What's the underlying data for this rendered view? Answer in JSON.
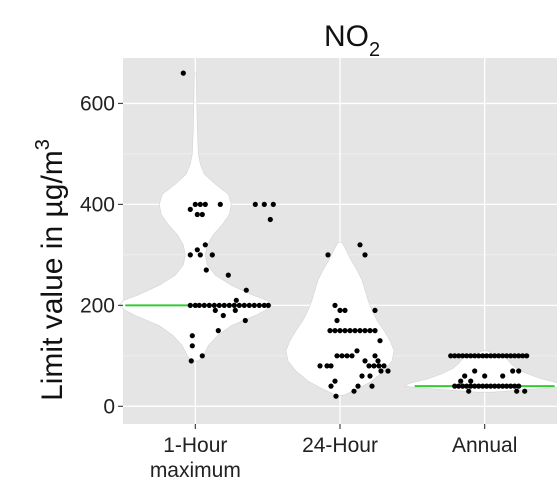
{
  "chart_data": {
    "type": "violin",
    "title": {
      "main": "NO",
      "subscript": "2"
    },
    "ylabel": {
      "main": "Limit value in µg/m",
      "superscript": "3"
    },
    "xlabel": "",
    "categories": [
      "1-Hour\nmaximum",
      "24-Hour",
      "Annual"
    ],
    "category_lines": [
      [
        "1-Hour",
        "maximum"
      ],
      [
        "24-Hour"
      ],
      [
        "Annual"
      ]
    ],
    "yticks": [
      0,
      200,
      400,
      600
    ],
    "ylim": [
      -35,
      690
    ],
    "grid": true,
    "background": "#e5e5e5",
    "violin_fill": "#ffffff",
    "point_color": "#000000",
    "median_color": "#33cc33",
    "medians": [
      200,
      null,
      40
    ],
    "violins": [
      {
        "category": "1-Hour\nmaximum",
        "profile": [
          [
            90,
            3
          ],
          [
            100,
            8
          ],
          [
            120,
            13
          ],
          [
            140,
            22
          ],
          [
            160,
            36
          ],
          [
            180,
            60
          ],
          [
            190,
            70
          ],
          [
            200,
            76
          ],
          [
            210,
            72
          ],
          [
            220,
            58
          ],
          [
            240,
            36
          ],
          [
            260,
            20
          ],
          [
            280,
            12
          ],
          [
            300,
            10
          ],
          [
            320,
            12
          ],
          [
            340,
            18
          ],
          [
            360,
            27
          ],
          [
            380,
            34
          ],
          [
            400,
            36
          ],
          [
            420,
            33
          ],
          [
            440,
            20
          ],
          [
            460,
            9
          ],
          [
            480,
            5
          ],
          [
            500,
            3
          ],
          [
            550,
            2
          ],
          [
            600,
            1.5
          ],
          [
            660,
            1
          ]
        ]
      },
      {
        "category": "24-Hour",
        "profile": [
          [
            22,
            4
          ],
          [
            35,
            18
          ],
          [
            50,
            32
          ],
          [
            70,
            44
          ],
          [
            90,
            52
          ],
          [
            110,
            54
          ],
          [
            130,
            50
          ],
          [
            150,
            44
          ],
          [
            170,
            37
          ],
          [
            190,
            32
          ],
          [
            210,
            28
          ],
          [
            230,
            25
          ],
          [
            250,
            22
          ],
          [
            270,
            17
          ],
          [
            290,
            11
          ],
          [
            310,
            6
          ],
          [
            325,
            2
          ]
        ]
      },
      {
        "category": "Annual",
        "profile": [
          [
            28,
            8
          ],
          [
            32,
            34
          ],
          [
            37,
            68
          ],
          [
            40,
            80
          ],
          [
            45,
            76
          ],
          [
            55,
            56
          ],
          [
            65,
            42
          ],
          [
            75,
            32
          ],
          [
            85,
            26
          ],
          [
            95,
            22
          ],
          [
            100,
            18
          ],
          [
            105,
            8
          ],
          [
            110,
            2
          ]
        ]
      }
    ],
    "points": [
      {
        "category": "1-Hour\nmaximum",
        "values": [
          660,
          400,
          400,
          400,
          400,
          400,
          400,
          400,
          390,
          380,
          380,
          370,
          320,
          310,
          300,
          300,
          300,
          270,
          260,
          230,
          210,
          200,
          200,
          200,
          200,
          200,
          200,
          200,
          200,
          200,
          200,
          200,
          200,
          200,
          200,
          200,
          200,
          200,
          190,
          190,
          180,
          170,
          150,
          140,
          120,
          100,
          90
        ],
        "jitter": [
          -12,
          0,
          5,
          10,
          25,
          60,
          69,
          78,
          -5,
          2,
          7,
          75,
          10,
          2,
          -5,
          5,
          17,
          11,
          33,
          51,
          41,
          -5,
          0,
          4,
          9,
          14,
          19,
          24,
          29,
          34,
          39,
          44,
          49,
          54,
          59,
          64,
          69,
          73,
          20,
          40,
          28,
          50,
          23,
          -3,
          -3,
          7,
          -4
        ]
      },
      {
        "category": "24-Hour",
        "values": [
          320,
          300,
          300,
          200,
          190,
          190,
          190,
          170,
          150,
          150,
          150,
          150,
          150,
          150,
          150,
          150,
          150,
          150,
          130,
          110,
          100,
          100,
          100,
          100,
          100,
          90,
          90,
          80,
          80,
          80,
          80,
          80,
          80,
          80,
          70,
          70,
          60,
          60,
          50,
          40,
          40,
          40,
          30,
          20
        ],
        "jitter": [
          20,
          -12,
          25,
          -5,
          0,
          5,
          35,
          -3,
          -10,
          -5,
          0,
          5,
          10,
          15,
          20,
          25,
          30,
          35,
          40,
          17,
          -3,
          2,
          7,
          12,
          35,
          25,
          38,
          -20,
          -13,
          -9,
          29,
          34,
          39,
          44,
          41,
          48,
          22,
          30,
          -5,
          -9,
          18,
          32,
          14,
          -4
        ]
      },
      {
        "category": "Annual",
        "values": [
          100,
          100,
          100,
          100,
          100,
          100,
          100,
          100,
          100,
          100,
          100,
          100,
          100,
          100,
          100,
          100,
          100,
          100,
          100,
          100,
          70,
          70,
          70,
          60,
          60,
          60,
          50,
          50,
          40,
          40,
          40,
          40,
          40,
          40,
          40,
          40,
          40,
          40,
          40,
          40,
          40,
          40,
          40,
          40,
          40,
          30,
          30,
          30
        ],
        "jitter": [
          -34,
          -30,
          -26,
          -22,
          -18,
          -14,
          -10,
          -6,
          -2,
          2,
          6,
          10,
          14,
          18,
          22,
          26,
          30,
          34,
          38,
          42,
          -10,
          28,
          34,
          -20,
          0,
          18,
          -24,
          -14,
          -30,
          -26,
          -22,
          -18,
          -14,
          -10,
          -6,
          -2,
          2,
          6,
          10,
          14,
          18,
          22,
          26,
          30,
          34,
          -16,
          32,
          40
        ]
      }
    ]
  }
}
